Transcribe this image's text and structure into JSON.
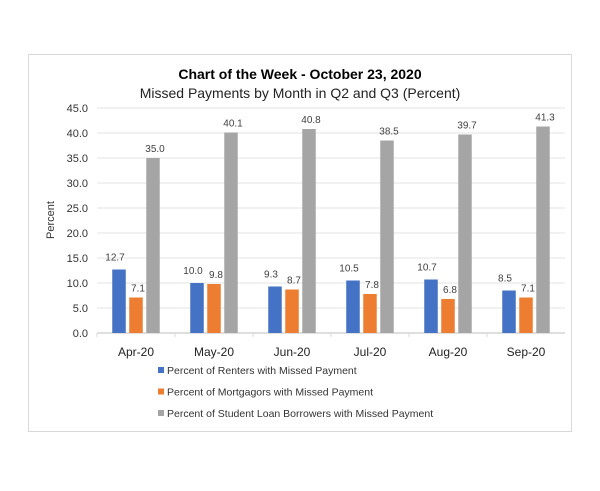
{
  "chart_data": {
    "type": "bar",
    "title": "Chart of the Week - October 23, 2020",
    "subtitle": "Missed Payments by Month in Q2 and Q3 (Percent)",
    "xlabel": "",
    "ylabel": "Percent",
    "ylim": [
      0,
      45
    ],
    "yticks": [
      "0.0",
      "5.0",
      "10.0",
      "15.0",
      "20.0",
      "25.0",
      "30.0",
      "35.0",
      "40.0",
      "45.0"
    ],
    "grid": true,
    "legend_position": "bottom",
    "categories": [
      "Apr-20",
      "May-20",
      "Jun-20",
      "Jul-20",
      "Aug-20",
      "Sep-20"
    ],
    "series": [
      {
        "name": "Percent of Renters with Missed Payment",
        "color": "#4472C4",
        "values": [
          12.7,
          10.0,
          9.3,
          10.5,
          10.7,
          8.5
        ],
        "labels": [
          "12.7",
          "10.0",
          "9.3",
          "10.5",
          "10.7",
          "8.5"
        ]
      },
      {
        "name": "Percent of Mortgagors with Missed Payment",
        "color": "#ED7D31",
        "values": [
          7.1,
          9.8,
          8.7,
          7.8,
          6.8,
          7.1
        ],
        "labels": [
          "7.1",
          "9.8",
          "8.7",
          "7.8",
          "6.8",
          "7.1"
        ]
      },
      {
        "name": "Percent of Student Loan Borrowers with Missed Payment",
        "color": "#A5A5A5",
        "values": [
          35.0,
          40.1,
          40.8,
          38.5,
          39.7,
          41.3
        ],
        "labels": [
          "35.0",
          "40.1",
          "40.8",
          "38.5",
          "39.7",
          "41.3"
        ]
      }
    ]
  }
}
